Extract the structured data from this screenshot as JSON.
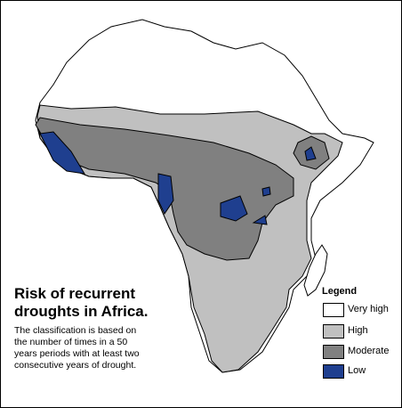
{
  "title": "Risk of recurrent droughts in Africa.",
  "description": "The classification is based on the number of times in a 50 years periods with at least two consecutive years of drought.",
  "legend": {
    "title": "Legend",
    "items": [
      {
        "label": "Very high",
        "color": "#ffffff"
      },
      {
        "label": "High",
        "color": "#c0c0c0"
      },
      {
        "label": "Moderate",
        "color": "#808080"
      },
      {
        "label": "Low",
        "color": "#1f3f8f"
      }
    ]
  }
}
